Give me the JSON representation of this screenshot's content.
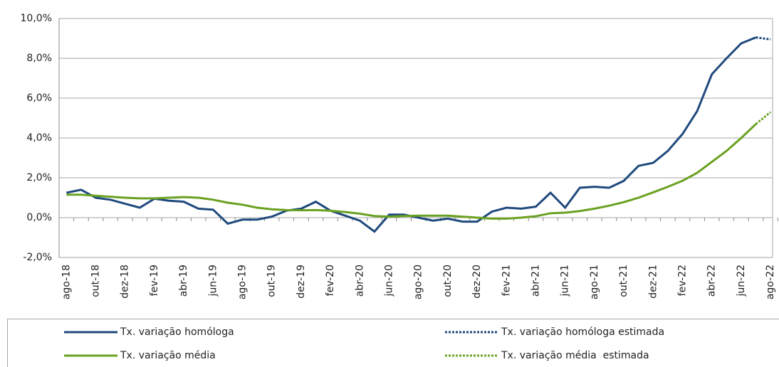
{
  "chart_data": {
    "type": "line",
    "categories": [
      "ago-18",
      null,
      "out-18",
      null,
      "dez-18",
      null,
      "fev-19",
      null,
      "abr-19",
      null,
      "jun-19",
      null,
      "ago-19",
      null,
      "out-19",
      null,
      "dez-19",
      null,
      "fev-20",
      null,
      "abr-20",
      null,
      "jun-20",
      null,
      "ago-20",
      null,
      "out-20",
      null,
      "dez-20",
      null,
      "fev-21",
      null,
      "abr-21",
      null,
      "jun-21",
      null,
      "ago-21",
      null,
      "out-21",
      null,
      "dez-21",
      null,
      "fev-22",
      null,
      "abr-22",
      null,
      "jun-22",
      null,
      "ago-22"
    ],
    "series": [
      {
        "name": "Tx. variação homóloga",
        "color": "#1f497d",
        "style": "solid",
        "values": [
          1.25,
          1.4,
          1.0,
          0.9,
          0.7,
          0.5,
          0.95,
          0.85,
          0.8,
          0.45,
          0.4,
          -0.3,
          -0.1,
          -0.1,
          0.05,
          0.35,
          0.45,
          0.8,
          0.35,
          0.1,
          -0.15,
          -0.7,
          0.15,
          0.15,
          0.0,
          -0.15,
          -0.05,
          -0.2,
          -0.2,
          0.3,
          0.5,
          0.45,
          0.55,
          1.25,
          0.5,
          1.5,
          1.55,
          1.5,
          1.85,
          2.6,
          2.75,
          3.35,
          4.2,
          5.35,
          7.2,
          8.0,
          8.75,
          9.05,
          null
        ]
      },
      {
        "name": "Tx. variação homóloga estimada",
        "color": "#1f497d",
        "style": "dotted",
        "values": [
          null,
          null,
          null,
          null,
          null,
          null,
          null,
          null,
          null,
          null,
          null,
          null,
          null,
          null,
          null,
          null,
          null,
          null,
          null,
          null,
          null,
          null,
          null,
          null,
          null,
          null,
          null,
          null,
          null,
          null,
          null,
          null,
          null,
          null,
          null,
          null,
          null,
          null,
          null,
          null,
          null,
          null,
          null,
          null,
          null,
          null,
          null,
          9.05,
          8.95
        ]
      },
      {
        "name": "Tx. variação média",
        "color": "#6aa121",
        "style": "solid",
        "values": [
          1.15,
          1.15,
          1.1,
          1.05,
          1.0,
          0.97,
          0.97,
          1.0,
          1.03,
          1.0,
          0.9,
          0.75,
          0.65,
          0.5,
          0.42,
          0.38,
          0.37,
          0.38,
          0.35,
          0.28,
          0.2,
          0.08,
          0.05,
          0.08,
          0.1,
          0.1,
          0.1,
          0.05,
          0.0,
          -0.05,
          -0.05,
          0.0,
          0.07,
          0.22,
          0.25,
          0.33,
          0.45,
          0.6,
          0.78,
          1.0,
          1.27,
          1.55,
          1.85,
          2.25,
          2.8,
          3.35,
          4.0,
          4.7,
          null
        ]
      },
      {
        "name": "Tx. variação média  estimada",
        "color": "#6aa121",
        "style": "dotted",
        "values": [
          null,
          null,
          null,
          null,
          null,
          null,
          null,
          null,
          null,
          null,
          null,
          null,
          null,
          null,
          null,
          null,
          null,
          null,
          null,
          null,
          null,
          null,
          null,
          null,
          null,
          null,
          null,
          null,
          null,
          null,
          null,
          null,
          null,
          null,
          null,
          null,
          null,
          null,
          null,
          null,
          null,
          null,
          null,
          null,
          null,
          null,
          null,
          4.7,
          5.3
        ]
      }
    ],
    "ylim": [
      -2,
      10
    ],
    "yticks": [
      {
        "value": -2,
        "label": "-2,0%"
      },
      {
        "value": 0,
        "label": "0,0%"
      },
      {
        "value": 2,
        "label": "2,0%"
      },
      {
        "value": 4,
        "label": "4,0%"
      },
      {
        "value": 6,
        "label": "6,0%"
      },
      {
        "value": 8,
        "label": "8,0%"
      },
      {
        "value": 10,
        "label": "10,0%"
      }
    ],
    "grid": true,
    "legend": "bottom"
  }
}
